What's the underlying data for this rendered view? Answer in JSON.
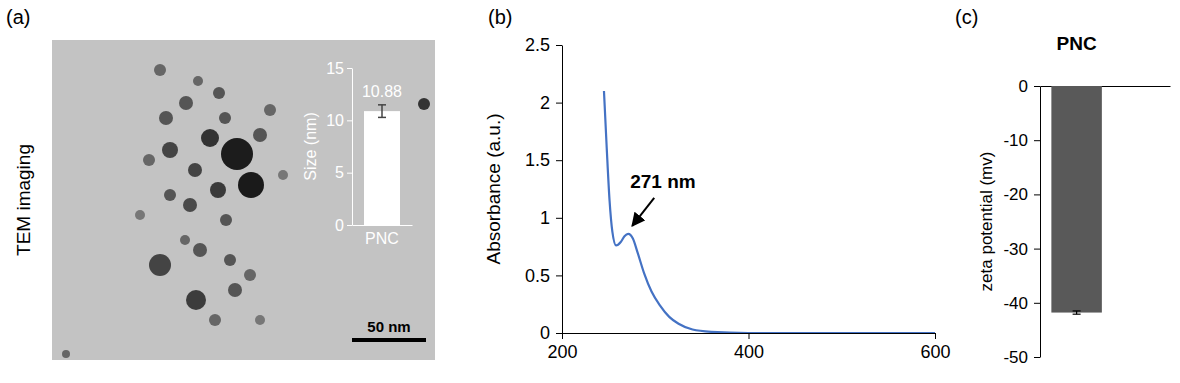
{
  "chart_data": [
    {
      "type": "bar",
      "panel": "(a)",
      "annotations": [
        {
          "text": "TEM imaging"
        },
        {
          "text": "50 nm"
        }
      ],
      "ylabel": "Size (nm)",
      "categories": [
        "PNC"
      ],
      "values": [
        10.88
      ],
      "errors": [
        0.6
      ],
      "color": "#ffffff",
      "ylim": [
        0,
        15
      ],
      "yticks": [
        0,
        5,
        10,
        15
      ],
      "data_labels": true
    },
    {
      "type": "line",
      "panel": "(b)",
      "ylabel": "Absorbance (a.u.)",
      "x": [
        245,
        248,
        251,
        254,
        258,
        263,
        267,
        271,
        276,
        281,
        288,
        296,
        305,
        315,
        325,
        340,
        360,
        400,
        500,
        600
      ],
      "values": [
        2.1,
        1.6,
        1.15,
        0.88,
        0.76,
        0.79,
        0.84,
        0.86,
        0.82,
        0.7,
        0.52,
        0.36,
        0.24,
        0.14,
        0.08,
        0.03,
        0.01,
        0,
        0,
        0
      ],
      "color": "#4472c4",
      "xlim": [
        200,
        600
      ],
      "xticks": [
        200,
        400,
        600
      ],
      "ylim": [
        0,
        2.5
      ],
      "yticks": [
        0,
        0.5,
        1,
        1.5,
        2,
        2.5
      ],
      "annotations": [
        {
          "text": "271 nm",
          "x": 271,
          "y": 0.86
        }
      ]
    },
    {
      "type": "bar",
      "panel": "(c)",
      "title": "PNC",
      "ylabel": "zeta potential (mv)",
      "categories": [
        null
      ],
      "values": [
        -41.8
      ],
      "errors": [
        0.3
      ],
      "color": "#595959",
      "ylim": [
        -50,
        0
      ],
      "yticks": [
        -50,
        -40,
        -30,
        -20,
        -10,
        0
      ]
    }
  ]
}
